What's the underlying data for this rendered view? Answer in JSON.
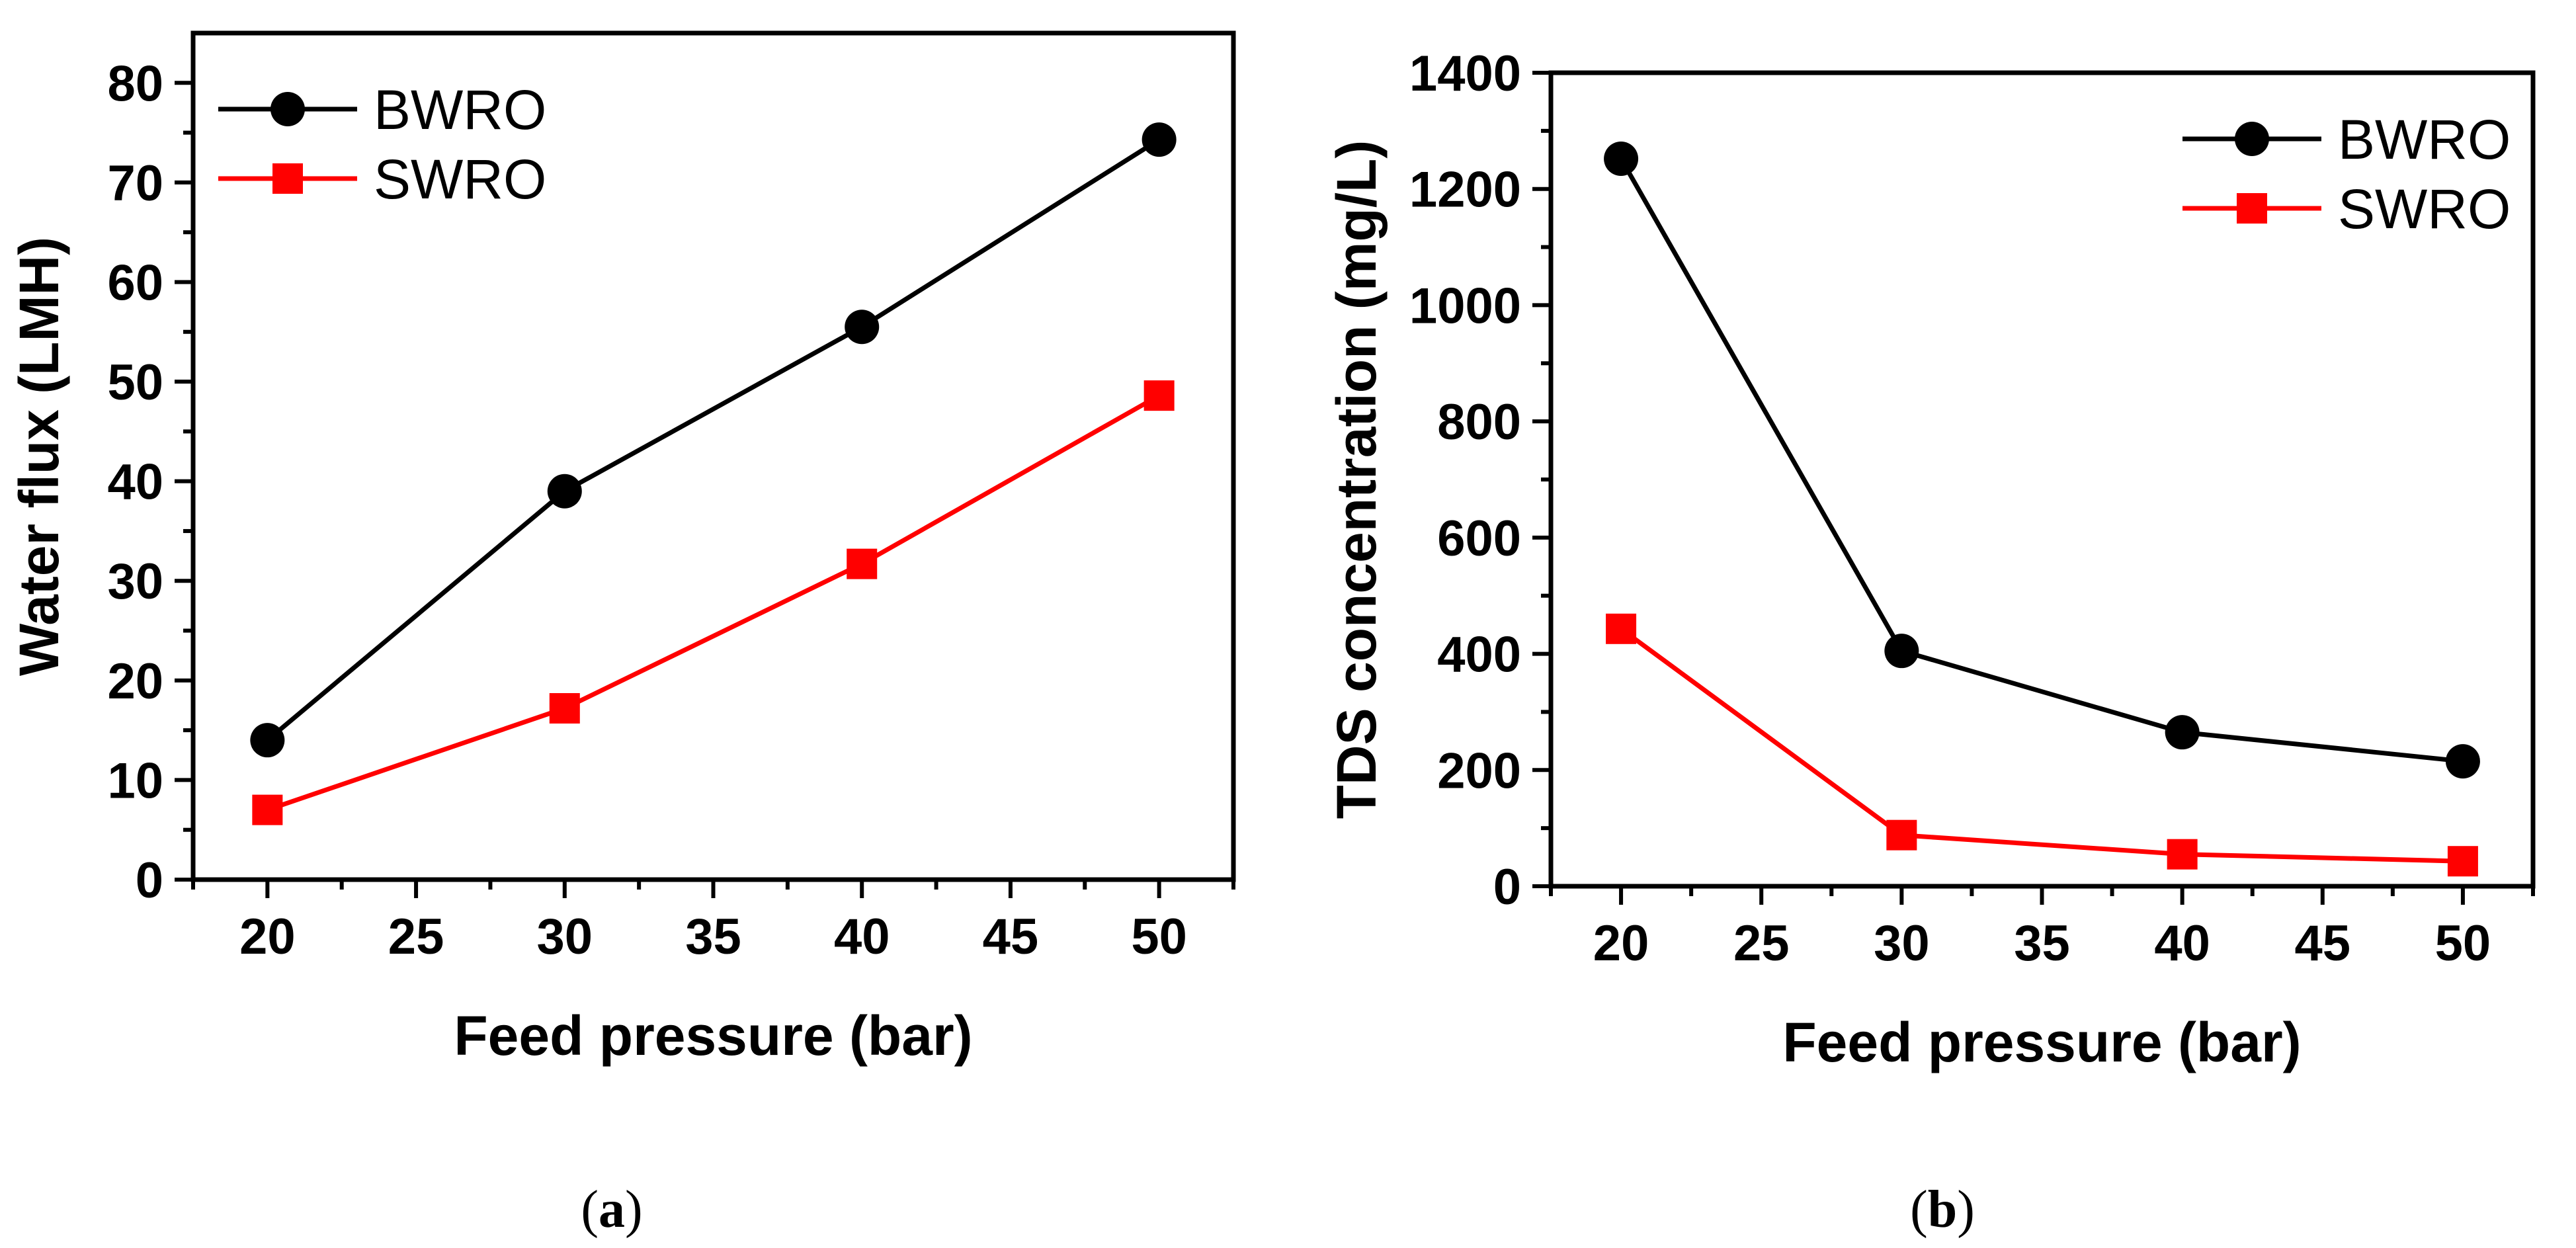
{
  "chart_data": [
    {
      "type": "line",
      "panel_label": "(a)",
      "xlabel": "Feed pressure (bar)",
      "ylabel": "Water flux (LMH)",
      "xlim": [
        17.5,
        52.5
      ],
      "ylim": [
        0,
        85
      ],
      "xticks": [
        20,
        25,
        30,
        35,
        40,
        45,
        50
      ],
      "yticks": [
        0,
        10,
        20,
        30,
        40,
        50,
        60,
        70,
        80
      ],
      "legend_position": "top-left",
      "x": [
        20,
        30,
        40,
        50
      ],
      "series": [
        {
          "name": "BWRO",
          "values": [
            14,
            39,
            55.5,
            74.3
          ],
          "color": "#000000",
          "marker": "circle"
        },
        {
          "name": "SWRO",
          "values": [
            7,
            17.2,
            31.7,
            48.6
          ],
          "color": "#ff0000",
          "marker": "square"
        }
      ]
    },
    {
      "type": "line",
      "panel_label": "(b)",
      "xlabel": "Feed pressure (bar)",
      "ylabel": "TDS concentration (mg/L)",
      "xlim": [
        17.5,
        52.5
      ],
      "ylim": [
        0,
        1400
      ],
      "xticks": [
        20,
        25,
        30,
        35,
        40,
        45,
        50
      ],
      "yticks": [
        0,
        200,
        400,
        600,
        800,
        1000,
        1200,
        1400
      ],
      "legend_position": "top-right",
      "x": [
        20,
        30,
        40,
        50
      ],
      "series": [
        {
          "name": "BWRO",
          "values": [
            1252,
            405,
            265,
            215
          ],
          "color": "#000000",
          "marker": "circle"
        },
        {
          "name": "SWRO",
          "values": [
            443,
            88,
            55,
            43
          ],
          "color": "#ff0000",
          "marker": "square"
        }
      ]
    }
  ]
}
